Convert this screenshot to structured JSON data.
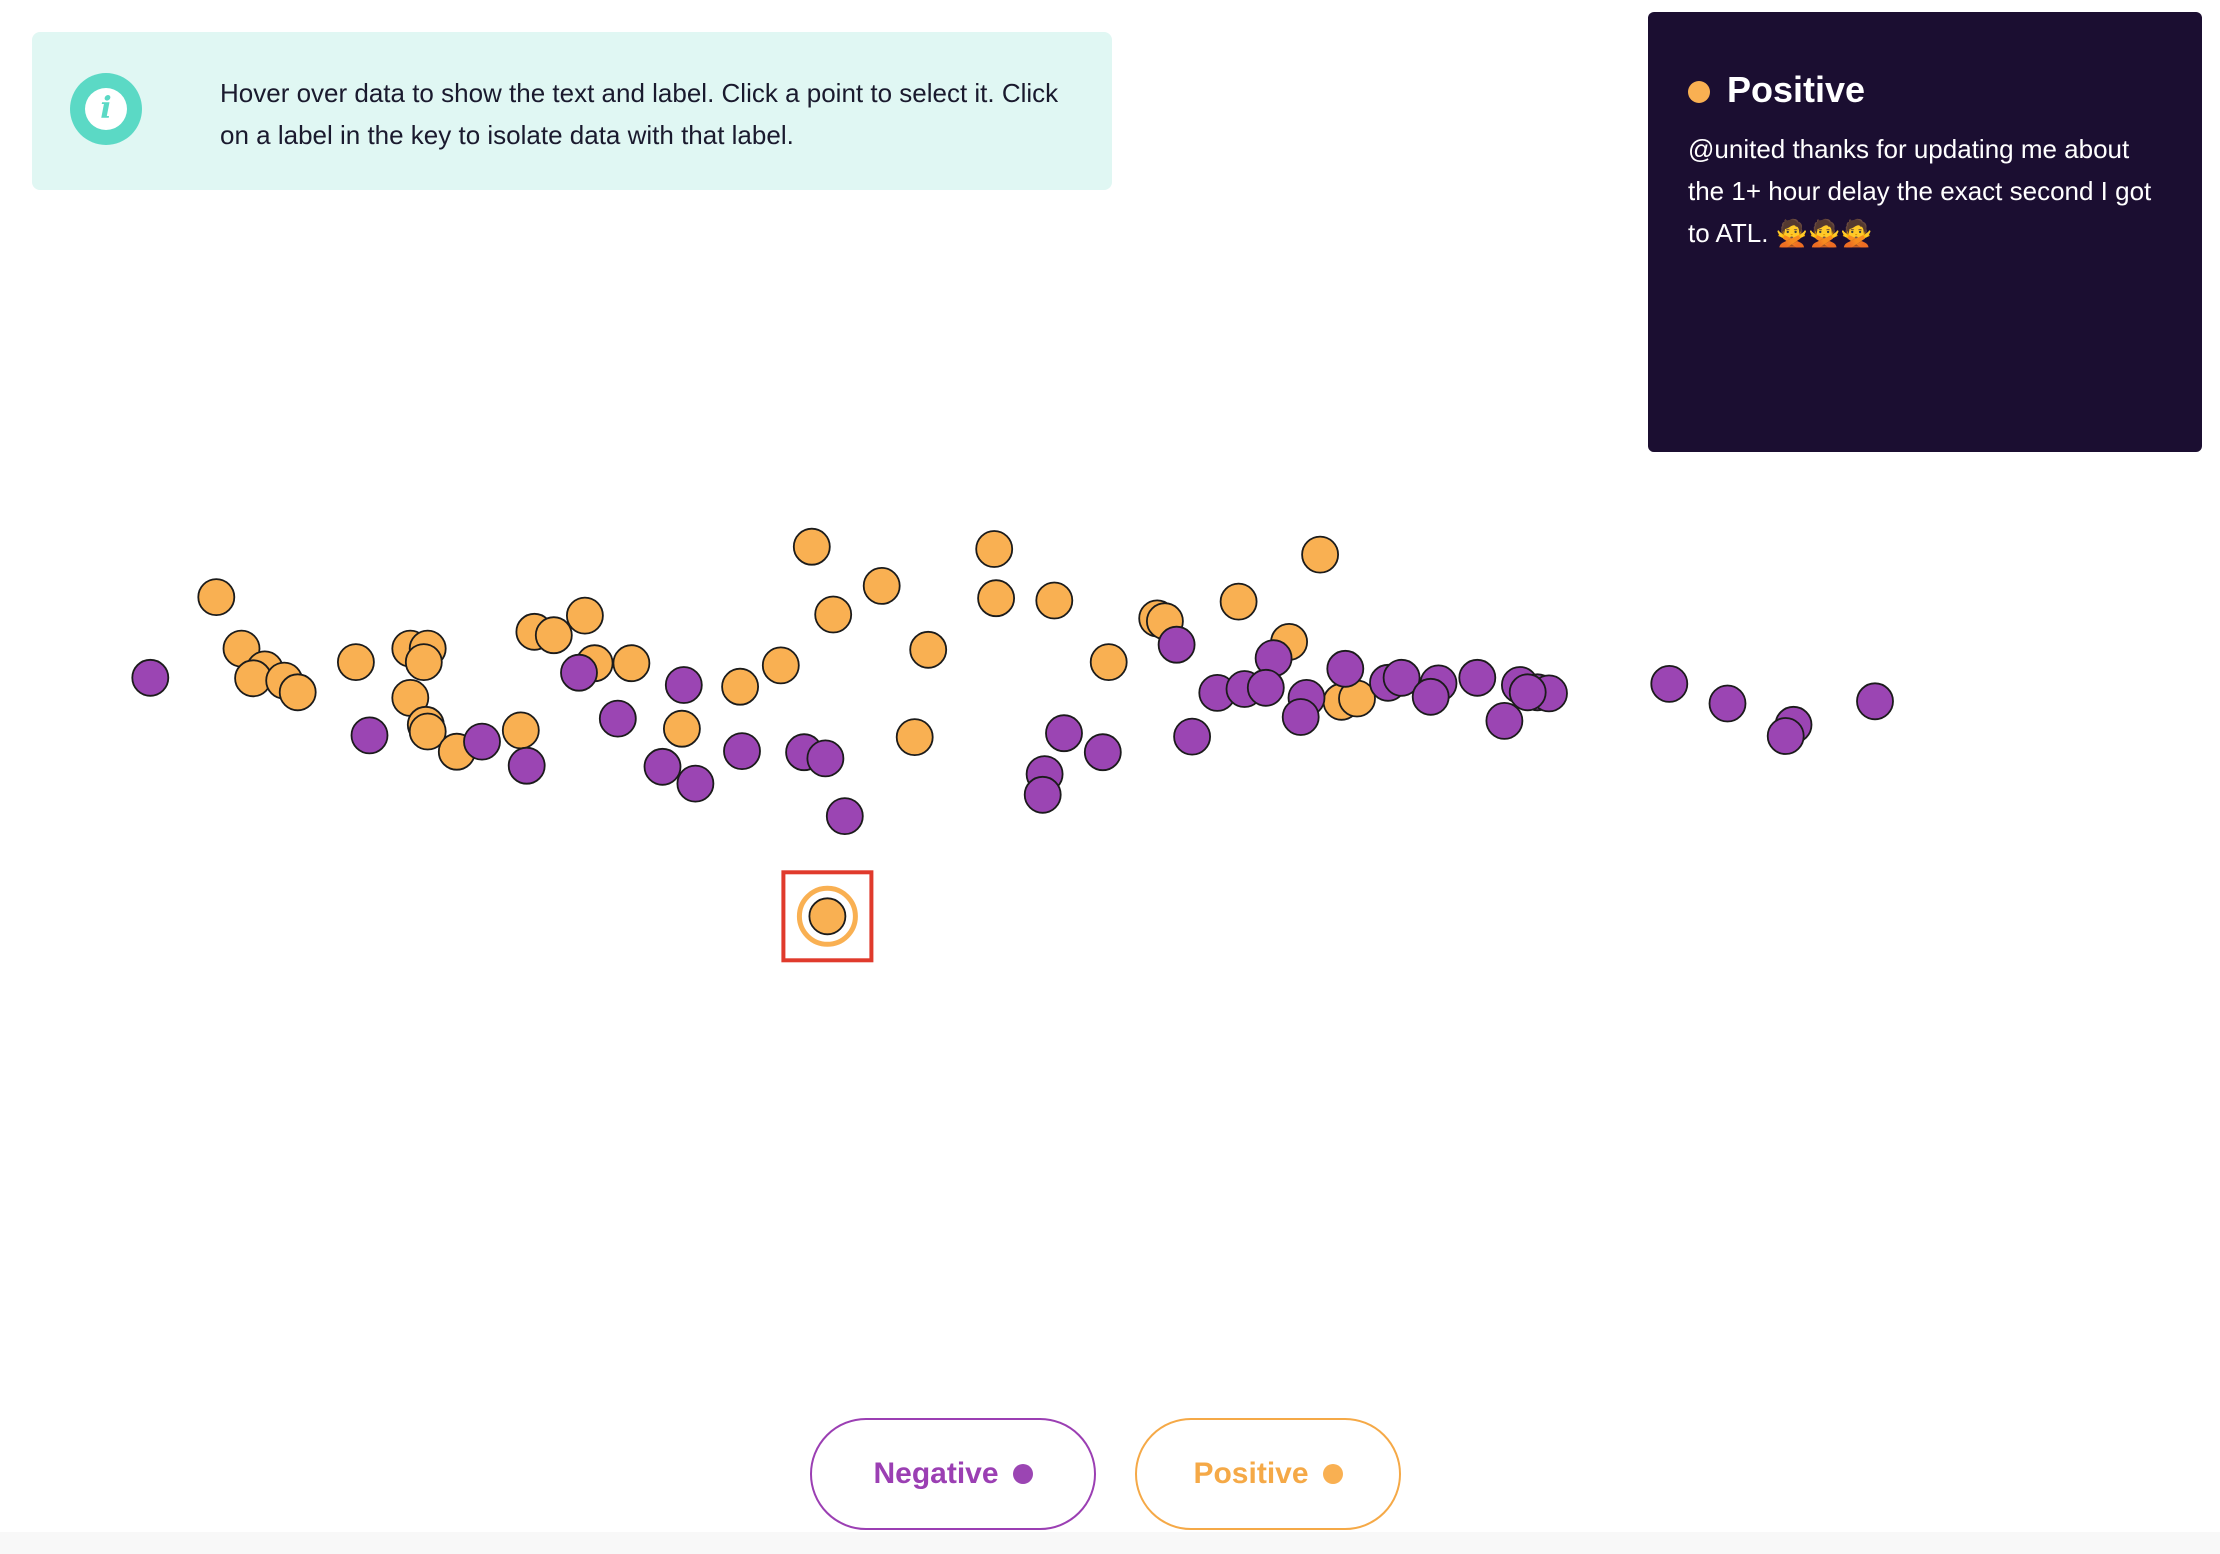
{
  "info": {
    "icon": "info-icon",
    "text": "Hover over data to show the text and label. Click a point to select it. Click on a label in the key to isolate data with that label."
  },
  "detail": {
    "label": "Positive",
    "text": "@united thanks for updating me about the 1+ hour delay the exact second I got to ATL. 🙅🙅🙅"
  },
  "legend": {
    "negative_label": "Negative",
    "positive_label": "Positive"
  },
  "colors": {
    "Negative": "#9b45b3",
    "Positive": "#f9b052",
    "selected_box": "#e03a2c",
    "card_bg": "#1b0e31",
    "banner_bg": "#e0f7f3"
  },
  "chart_data": {
    "type": "scatter",
    "title": "",
    "xlabel": "",
    "ylabel": "",
    "xlim": [
      0,
      100
    ],
    "ylim": [
      0,
      100
    ],
    "grid": false,
    "legend_position": "bottom-center",
    "selected_index": 0,
    "series": [
      {
        "name": "Positive",
        "points": [
          [
            34.4,
            32.8
          ],
          [
            33.6,
            98.8
          ],
          [
            43.0,
            98.4
          ],
          [
            59.8,
            97.4
          ],
          [
            37.2,
            91.8
          ],
          [
            43.1,
            89.6
          ],
          [
            46.1,
            89.2
          ],
          [
            55.6,
            89.0
          ],
          [
            2.9,
            89.8
          ],
          [
            21.9,
            86.5
          ],
          [
            34.7,
            86.7
          ],
          [
            51.4,
            86.0
          ],
          [
            51.8,
            85.5
          ],
          [
            19.3,
            83.6
          ],
          [
            20.3,
            83.0
          ],
          [
            58.2,
            81.8
          ],
          [
            4.2,
            80.6
          ],
          [
            12.9,
            80.6
          ],
          [
            13.8,
            80.6
          ],
          [
            39.6,
            80.4
          ],
          [
            10.1,
            78.2
          ],
          [
            13.6,
            78.2
          ],
          [
            22.4,
            78.0
          ],
          [
            24.3,
            78.0
          ],
          [
            32.0,
            77.6
          ],
          [
            48.9,
            78.2
          ],
          [
            5.4,
            76.9
          ],
          [
            4.8,
            75.3
          ],
          [
            6.4,
            74.9
          ],
          [
            29.9,
            73.8
          ],
          [
            7.1,
            72.8
          ],
          [
            12.9,
            71.8
          ],
          [
            60.9,
            71.1
          ],
          [
            61.7,
            71.7
          ],
          [
            13.7,
            67.0
          ],
          [
            13.8,
            65.8
          ],
          [
            18.6,
            66.0
          ],
          [
            26.9,
            66.3
          ],
          [
            38.9,
            64.8
          ],
          [
            15.3,
            62.2
          ]
        ]
      },
      {
        "name": "Negative",
        "points": [
          [
            -0.5,
            75.4
          ],
          [
            21.6,
            76.3
          ],
          [
            52.4,
            81.3
          ],
          [
            57.4,
            78.9
          ],
          [
            61.1,
            77.0
          ],
          [
            27.0,
            74.1
          ],
          [
            54.5,
            72.7
          ],
          [
            55.9,
            73.4
          ],
          [
            57.0,
            73.6
          ],
          [
            59.1,
            71.8
          ],
          [
            63.3,
            74.5
          ],
          [
            64.0,
            75.4
          ],
          [
            65.9,
            74.4
          ],
          [
            67.9,
            75.4
          ],
          [
            70.1,
            74.1
          ],
          [
            71.0,
            72.8
          ],
          [
            71.6,
            72.6
          ],
          [
            70.5,
            72.8
          ],
          [
            65.5,
            72.0
          ],
          [
            77.8,
            74.3
          ],
          [
            80.8,
            70.8
          ],
          [
            88.4,
            71.2
          ],
          [
            23.6,
            68.1
          ],
          [
            58.8,
            68.4
          ],
          [
            69.3,
            67.7
          ],
          [
            84.2,
            67.0
          ],
          [
            83.8,
            65.0
          ],
          [
            10.8,
            65.1
          ],
          [
            16.6,
            64.0
          ],
          [
            46.6,
            65.5
          ],
          [
            53.2,
            64.9
          ],
          [
            30.0,
            62.3
          ],
          [
            33.2,
            62.1
          ],
          [
            34.3,
            61.0
          ],
          [
            48.6,
            62.1
          ],
          [
            18.9,
            59.7
          ],
          [
            25.9,
            59.5
          ],
          [
            45.6,
            58.2
          ],
          [
            27.6,
            56.5
          ],
          [
            45.5,
            54.5
          ],
          [
            35.3,
            50.7
          ]
        ]
      }
    ]
  }
}
